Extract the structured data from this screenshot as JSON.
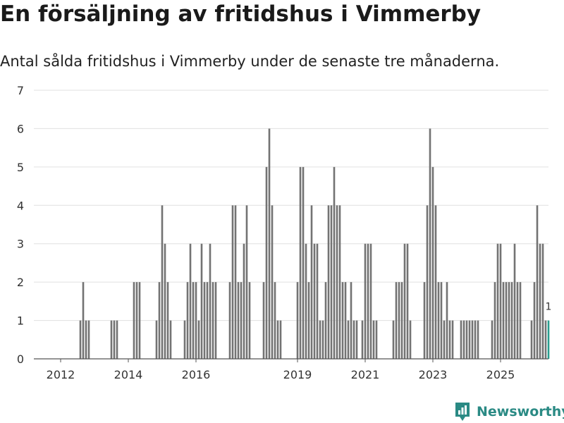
{
  "title": "En försäljning av fritidshus i Vimmerby",
  "subtitle": "Antal sålda fritidshus i Vimmerby under de senaste tre månaderna.",
  "brand": {
    "name": "Newsworthy",
    "logo_icon": "bar-chart-badge-icon",
    "color": "#2a8a84"
  },
  "colors": {
    "bar": "#737373",
    "highlight": "#2a9d8f",
    "grid": "#e0e0e0",
    "axis": "#555555"
  },
  "chart_data": {
    "type": "bar",
    "title": "En försäljning av fritidshus i Vimmerby",
    "subtitle": "Antal sålda fritidshus i Vimmerby under de senaste tre månaderna.",
    "xlabel": "",
    "ylabel": "",
    "ylim": [
      0,
      7
    ],
    "yticks": [
      0,
      1,
      2,
      3,
      4,
      5,
      6,
      7
    ],
    "xticks": [
      {
        "label": "2012",
        "index": 1
      },
      {
        "label": "2014",
        "index": 25
      },
      {
        "label": "2016",
        "index": 49
      },
      {
        "label": "2019",
        "index": 85
      },
      {
        "label": "2021",
        "index": 109
      },
      {
        "label": "2023",
        "index": 133
      },
      {
        "label": "2025",
        "index": 157
      }
    ],
    "grid": true,
    "highlight_last": true,
    "last_value_label": "1",
    "values": [
      0,
      0,
      0,
      0,
      0,
      0,
      0,
      0,
      1,
      2,
      1,
      1,
      0,
      0,
      0,
      0,
      0,
      0,
      0,
      1,
      1,
      1,
      0,
      0,
      0,
      0,
      0,
      2,
      2,
      2,
      0,
      0,
      0,
      0,
      0,
      1,
      2,
      4,
      3,
      2,
      1,
      0,
      0,
      0,
      0,
      1,
      2,
      3,
      2,
      2,
      1,
      3,
      2,
      2,
      3,
      2,
      2,
      0,
      0,
      0,
      0,
      2,
      4,
      4,
      2,
      2,
      3,
      4,
      2,
      0,
      0,
      0,
      0,
      2,
      5,
      6,
      4,
      2,
      1,
      1,
      0,
      0,
      0,
      0,
      0,
      2,
      5,
      5,
      3,
      2,
      4,
      3,
      3,
      1,
      1,
      2,
      4,
      4,
      5,
      4,
      4,
      2,
      2,
      1,
      2,
      1,
      1,
      0,
      1,
      3,
      3,
      3,
      1,
      1,
      0,
      0,
      0,
      0,
      0,
      1,
      2,
      2,
      2,
      3,
      3,
      1,
      0,
      0,
      0,
      0,
      2,
      4,
      6,
      5,
      4,
      2,
      2,
      1,
      2,
      1,
      1,
      0,
      0,
      1,
      1,
      1,
      1,
      1,
      1,
      1,
      0,
      0,
      0,
      0,
      1,
      2,
      3,
      3,
      2,
      2,
      2,
      2,
      3,
      2,
      2,
      0,
      0,
      0,
      1,
      2,
      4,
      3,
      3,
      1,
      1
    ]
  }
}
